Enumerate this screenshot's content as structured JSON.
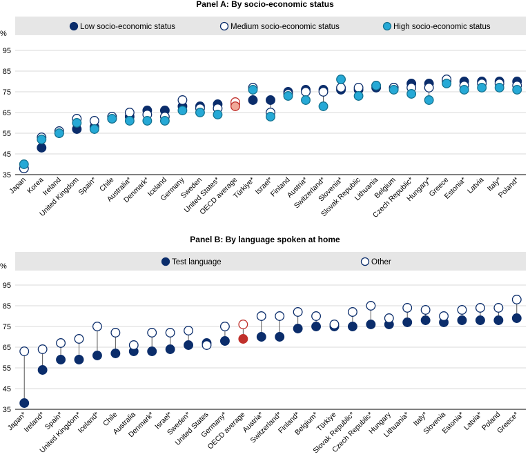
{
  "colors": {
    "low": "#0b2d6b",
    "medium": "#ffffff",
    "medium_stroke": "#0b2d6b",
    "high": "#26a9d6",
    "high_stroke": "#14728f",
    "oecd_fill": "#c0302b",
    "oecd_light": "#f0a898",
    "legend_bg": "#e6e6e6",
    "grid": "#d9d9d9"
  },
  "chart_data": [
    {
      "type": "scatter",
      "title": "Panel A: By socio-economic status",
      "ylabel": "%",
      "ylim": [
        35,
        95
      ],
      "yticks": [
        35,
        45,
        55,
        65,
        75,
        85,
        95
      ],
      "grid": true,
      "legend_placement": "top",
      "categories": [
        "Japan",
        "Korea",
        "Ireland",
        "United Kingdom",
        "Spain*",
        "Chile",
        "Australia*",
        "Denmark*",
        "Iceland",
        "Germany",
        "Sweden",
        "United States*",
        "OECD average",
        "Türkiye*",
        "Israel*",
        "Finland",
        "Austria*",
        "Switzerland*",
        "Slovenia*",
        "Slovak Republic",
        "Lithuania",
        "Belgium",
        "Czech Republic*",
        "Hungary*",
        "Greece",
        "Estonia*",
        "Latvia",
        "Italy*",
        "Poland*"
      ],
      "series": [
        {
          "name": "Low socio-economic status",
          "key": "low",
          "values": [
            38,
            48,
            55,
            57,
            58,
            62,
            63,
            66,
            66,
            68,
            68,
            69,
            69,
            71,
            71,
            75,
            76,
            76,
            76,
            76,
            77,
            77,
            79,
            79,
            80,
            80,
            80,
            80,
            80
          ]
        },
        {
          "name": "Medium socio-economic status",
          "key": "medium",
          "values": [
            38,
            53,
            56,
            62,
            61,
            63,
            65,
            64,
            63,
            71,
            67,
            67,
            70,
            77,
            65,
            74,
            75,
            75,
            77,
            77,
            78,
            77,
            77,
            77,
            81,
            78,
            79,
            79,
            78
          ]
        },
        {
          "name": "High socio-economic status",
          "key": "high",
          "values": [
            40,
            52,
            55,
            60,
            57,
            62,
            61,
            61,
            61,
            66,
            65,
            64,
            68,
            76,
            63,
            73,
            71,
            68,
            81,
            73,
            78,
            76,
            74,
            71,
            79,
            76,
            77,
            77,
            76
          ]
        }
      ]
    },
    {
      "type": "scatter",
      "title": "Panel B: By language spoken at home",
      "ylabel": "%",
      "ylim": [
        35,
        95
      ],
      "yticks": [
        35,
        45,
        55,
        65,
        75,
        85,
        95
      ],
      "grid": true,
      "legend_placement": "top",
      "categories": [
        "Japan*",
        "Ireland*",
        "Spain*",
        "United Kingdom*",
        "Iceland*",
        "Chile",
        "Australia",
        "Denmark*",
        "Israel*",
        "Sweden*",
        "United States",
        "Germany*",
        "OECD average",
        "Austria*",
        "Switzerland*",
        "Finland*",
        "Belgium*",
        "Türkiye",
        "Slovak Republic*",
        "Czech Republic*",
        "Hungary",
        "Lithuania*",
        "Italy*",
        "Slovenia",
        "Estonia*",
        "Latvia*",
        "Poland",
        "Greece*"
      ],
      "series": [
        {
          "name": "Test language",
          "key": "test",
          "values": [
            38,
            54,
            59,
            59,
            61,
            62,
            63,
            63,
            64,
            66,
            67,
            68,
            69,
            70,
            70,
            74,
            75,
            75,
            75,
            76,
            76,
            77,
            78,
            77,
            78,
            78,
            78,
            79
          ]
        },
        {
          "name": "Other",
          "key": "other",
          "values": [
            63,
            64,
            67,
            69,
            75,
            72,
            66,
            72,
            72,
            73,
            66,
            75,
            76,
            80,
            80,
            82,
            80,
            76,
            82,
            85,
            79,
            84,
            83,
            80,
            83,
            84,
            84,
            88
          ]
        }
      ]
    }
  ]
}
